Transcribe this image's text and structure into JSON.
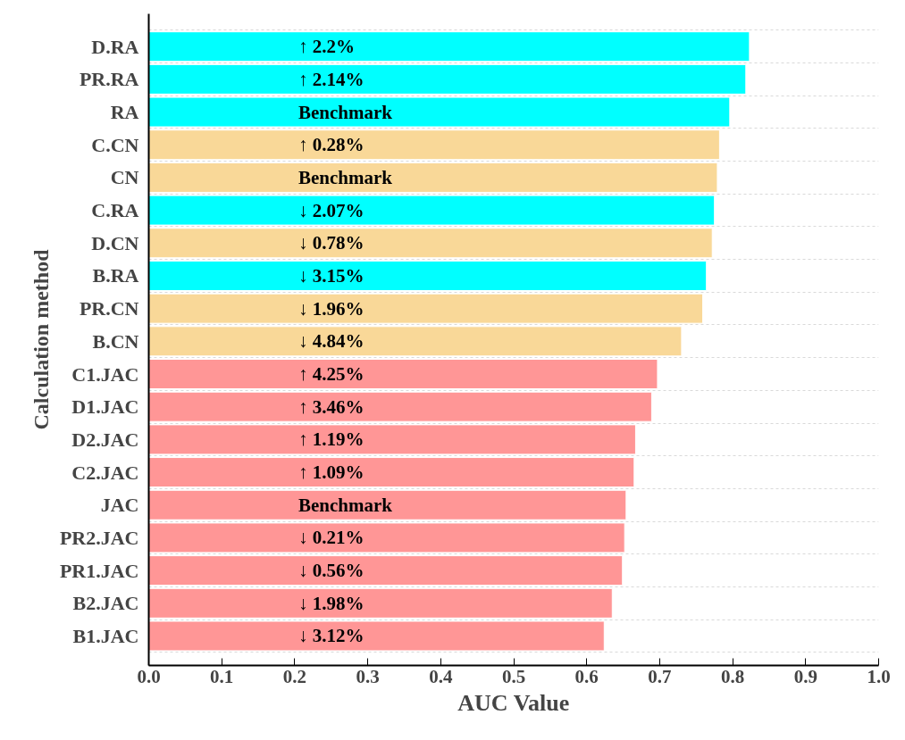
{
  "chart_data": {
    "type": "bar",
    "orientation": "horizontal",
    "xlabel": "AUC Value",
    "ylabel": "Calculation method",
    "categories": [
      "D.RA",
      "PR.RA",
      "RA",
      "C.CN",
      "CN",
      "C.RA",
      "D.CN",
      "B.RA",
      "PR.CN",
      "B.CN",
      "C1.JAC",
      "D1.JAC",
      "D2.JAC",
      "C2.JAC",
      "JAC",
      "PR2.JAC",
      "PR1.JAC",
      "B2.JAC",
      "B1.JAC"
    ],
    "values": [
      0.823,
      0.818,
      0.796,
      0.782,
      0.779,
      0.775,
      0.772,
      0.764,
      0.759,
      0.73,
      0.697,
      0.689,
      0.667,
      0.665,
      0.654,
      0.652,
      0.649,
      0.635,
      0.624
    ],
    "colors": [
      "#00ffff",
      "#00ffff",
      "#00ffff",
      "#f9d898",
      "#f9d898",
      "#00ffff",
      "#f9d898",
      "#00ffff",
      "#f9d898",
      "#f9d898",
      "#ff9696",
      "#ff9696",
      "#ff9696",
      "#ff9696",
      "#ff9696",
      "#ff9696",
      "#ff9696",
      "#ff9696",
      "#ff9696"
    ],
    "annotations": [
      "↑ 2.2%",
      "↑ 2.14%",
      "Benchmark",
      "↑ 0.28%",
      "Benchmark",
      "↓ 2.07%",
      "↓ 0.78%",
      "↓ 3.15%",
      "↓ 1.96%",
      "↓ 4.84%",
      "↑ 4.25%",
      "↑ 3.46%",
      "↑ 1.19%",
      "↑ 1.09%",
      "Benchmark",
      "↓ 0.21%",
      "↓ 0.56%",
      "↓ 1.98%",
      "↓ 3.12%"
    ],
    "xlim": [
      0,
      1.0
    ],
    "xticks": [
      {
        "value": 0,
        "label": "0.0"
      },
      0.1,
      0.2,
      0.3,
      0.4,
      0.5,
      0.6,
      0.7,
      0.8,
      0.9,
      {
        "value": 1.0,
        "label": "1.0"
      }
    ],
    "grid": "y"
  }
}
